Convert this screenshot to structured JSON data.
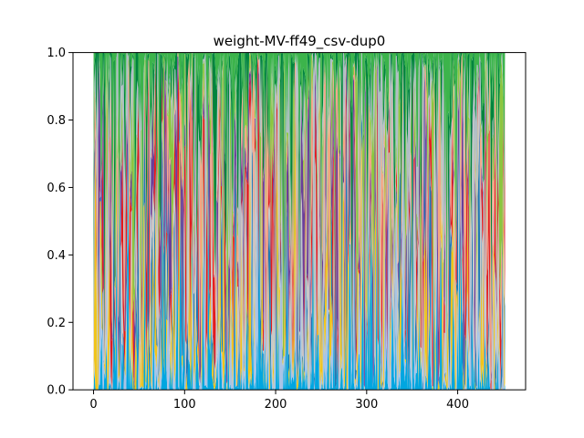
{
  "chart_data": {
    "type": "area",
    "title": "weight-MV-ff49_csv-dup0",
    "xlabel": "",
    "ylabel": "",
    "xlim": [
      -22.6,
      474.6
    ],
    "ylim": [
      0,
      1.0
    ],
    "x_ticks": [
      0,
      100,
      200,
      300,
      400
    ],
    "x_tick_labels": [
      "0",
      "100",
      "200",
      "300",
      "400"
    ],
    "y_ticks": [
      0.0,
      0.2,
      0.4,
      0.6,
      0.8,
      1.0
    ],
    "y_tick_labels": [
      "0.0",
      "0.2",
      "0.4",
      "0.6",
      "0.8",
      "1.0"
    ],
    "x_range": [
      0,
      452
    ],
    "stacked": true,
    "normalized": true,
    "series_count": 12,
    "grid": false,
    "legend": "none",
    "series_colors": [
      "#00a6e0",
      "#a9c4e6",
      "#f0c419",
      "#1f78b4",
      "#c8c8c8",
      "#e31a1c",
      "#6a3d9a",
      "#f4a582",
      "#8cc63f",
      "#b0bec5",
      "#00843d",
      "#3cb44b"
    ]
  }
}
